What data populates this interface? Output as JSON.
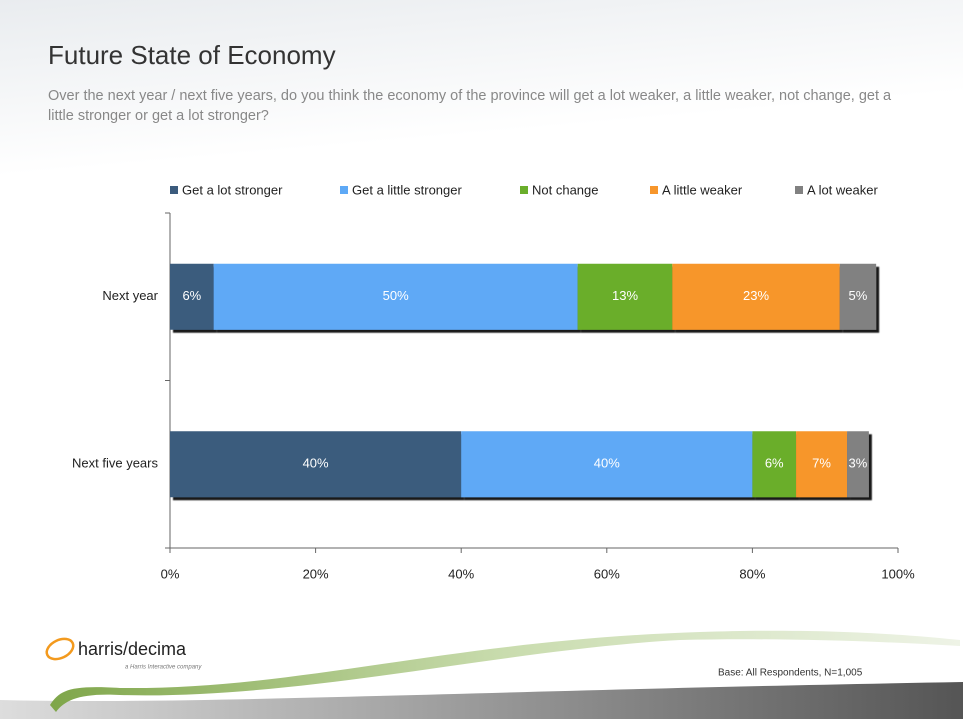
{
  "chart_data": {
    "type": "stacked_barh",
    "title": "Future State of Economy",
    "subtitle": "Over the next year / next five years, do you think the economy of the province will get a lot weaker, a little weaker, not change, get a little stronger or get a lot stronger?",
    "categories": [
      "Next year",
      "Next five years"
    ],
    "series": [
      {
        "name": "Get a lot stronger",
        "color": "#3b5b7d",
        "values": [
          6,
          40
        ],
        "value_labels": [
          "6%",
          "40%"
        ]
      },
      {
        "name": "Get a little stronger",
        "color": "#5ea9f6",
        "values": [
          50,
          40
        ],
        "value_labels": [
          "50%",
          "40%"
        ]
      },
      {
        "name": "Not change",
        "color": "#6aae2b",
        "values": [
          13,
          6
        ],
        "value_labels": [
          "13%",
          "6%"
        ]
      },
      {
        "name": "A little weaker",
        "color": "#f7962b",
        "values": [
          23,
          7
        ],
        "value_labels": [
          "23%",
          "7%"
        ]
      },
      {
        "name": "A lot weaker",
        "color": "#818181",
        "values": [
          5,
          3
        ],
        "value_labels": [
          "5%",
          "3%"
        ]
      }
    ],
    "xlim": [
      0,
      100
    ],
    "xticks": [
      {
        "value": 0,
        "label": "0%"
      },
      {
        "value": 20,
        "label": "20%"
      },
      {
        "value": 40,
        "label": "40%"
      },
      {
        "value": 60,
        "label": "60%"
      },
      {
        "value": 80,
        "label": "80%"
      },
      {
        "value": 100,
        "label": "100%"
      }
    ],
    "legend": "top",
    "footnote": "Base: All Respondents, N=1,005"
  },
  "logo": {
    "name": "harris/decima",
    "tagline": "a Harris Interactive company"
  }
}
